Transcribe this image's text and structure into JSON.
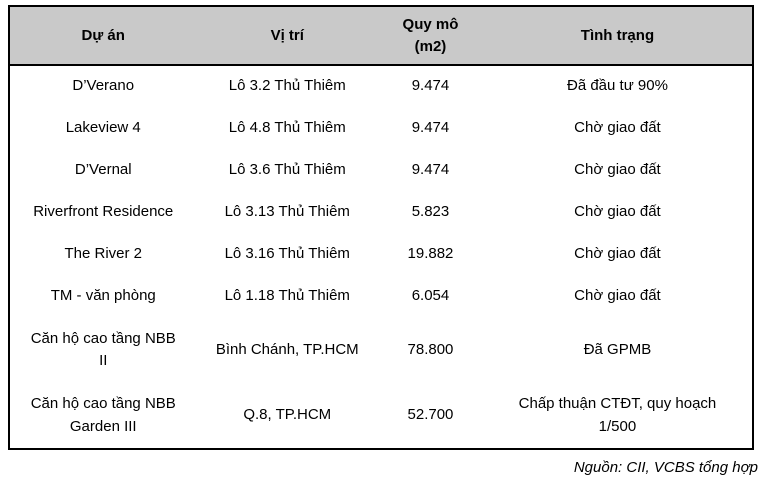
{
  "table": {
    "columns": [
      "Dự án",
      "Vị trí",
      "Quy mô\n(m2)",
      "Tình trạng"
    ],
    "rows": [
      {
        "cells": [
          "D’Verano",
          "Lô 3.2 Thủ Thiêm",
          "9.474",
          "Đã đầu tư 90%"
        ]
      },
      {
        "cells": [
          "Lakeview 4",
          "Lô 4.8 Thủ Thiêm",
          "9.474",
          "Chờ giao đất"
        ]
      },
      {
        "cells": [
          "D’Vernal",
          "Lô 3.6 Thủ Thiêm",
          "9.474",
          "Chờ giao đất"
        ]
      },
      {
        "cells": [
          "Riverfront Residence",
          "Lô 3.13 Thủ Thiêm",
          "5.823",
          "Chờ giao đất"
        ]
      },
      {
        "cells": [
          "The River 2",
          "Lô 3.16 Thủ Thiêm",
          "19.882",
          "Chờ giao đất"
        ]
      },
      {
        "cells": [
          "TM - văn phòng",
          "Lô 1.18 Thủ Thiêm",
          "6.054",
          "Chờ giao đất"
        ]
      },
      {
        "cells": [
          "Căn hộ cao tầng NBB\nII",
          "Bình Chánh, TP.HCM",
          "78.800",
          "Đã GPMB"
        ]
      },
      {
        "cells": [
          "Căn hộ cao tầng NBB\nGarden III",
          "Q.8, TP.HCM",
          "52.700",
          "Chấp thuận CTĐT, quy hoạch\n1/500"
        ]
      }
    ]
  },
  "footer": {
    "source_note": "Nguồn: CII, VCBS tổng hợp"
  },
  "colors": {
    "header_bg": "#c9c9c9",
    "border": "#000000",
    "text": "#000000",
    "background": "#ffffff"
  }
}
